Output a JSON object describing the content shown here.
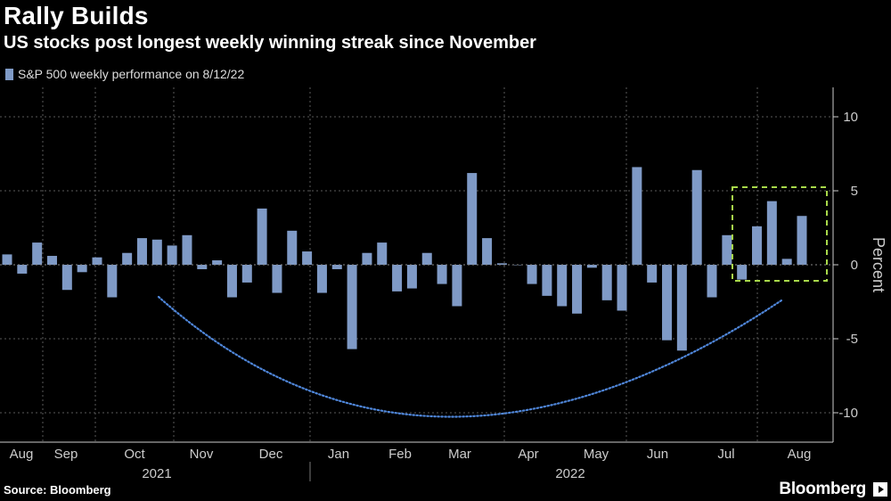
{
  "title": "Rally Builds",
  "subtitle": "US stocks post longest weekly winning streak since November",
  "source": "Source: Bloomberg",
  "brand": "Bloomberg",
  "colors": {
    "bar": "#7f9ac6",
    "curve": "#4f86d9",
    "highlight": "#a8d94a",
    "grid": "#5a5a5a",
    "axis": "#cccccc"
  },
  "chart_data": {
    "type": "bar",
    "legend": "S&P 500 weekly performance on 8/12/22",
    "ylabel": "Percent",
    "ylim": [
      -12,
      12
    ],
    "yticks": [
      10,
      5,
      0,
      -5,
      -10
    ],
    "x_month_labels": [
      "Aug",
      "Sep",
      "Oct",
      "Nov",
      "Dec",
      "Jan",
      "Feb",
      "Mar",
      "Apr",
      "May",
      "Jun",
      "Jul",
      "Aug"
    ],
    "year_labels": [
      "2021",
      "2022"
    ],
    "values": [
      0.7,
      -0.6,
      1.5,
      0.6,
      -1.7,
      -0.5,
      0.5,
      -2.2,
      0.8,
      1.8,
      1.7,
      1.3,
      2.0,
      -0.3,
      0.3,
      -2.2,
      -1.2,
      3.8,
      -1.9,
      2.3,
      0.9,
      -1.9,
      -0.3,
      -5.7,
      0.8,
      1.5,
      -1.8,
      -1.6,
      0.8,
      -1.3,
      -2.8,
      6.2,
      1.8,
      0.1,
      0,
      -1.3,
      -2.1,
      -2.8,
      -3.3,
      -0.2,
      -2.4,
      -3.1,
      6.6,
      -1.2,
      -5.1,
      -5.8,
      6.4,
      -2.2,
      2.0,
      -1.0,
      2.6,
      4.3,
      0.4,
      3.3
    ]
  }
}
